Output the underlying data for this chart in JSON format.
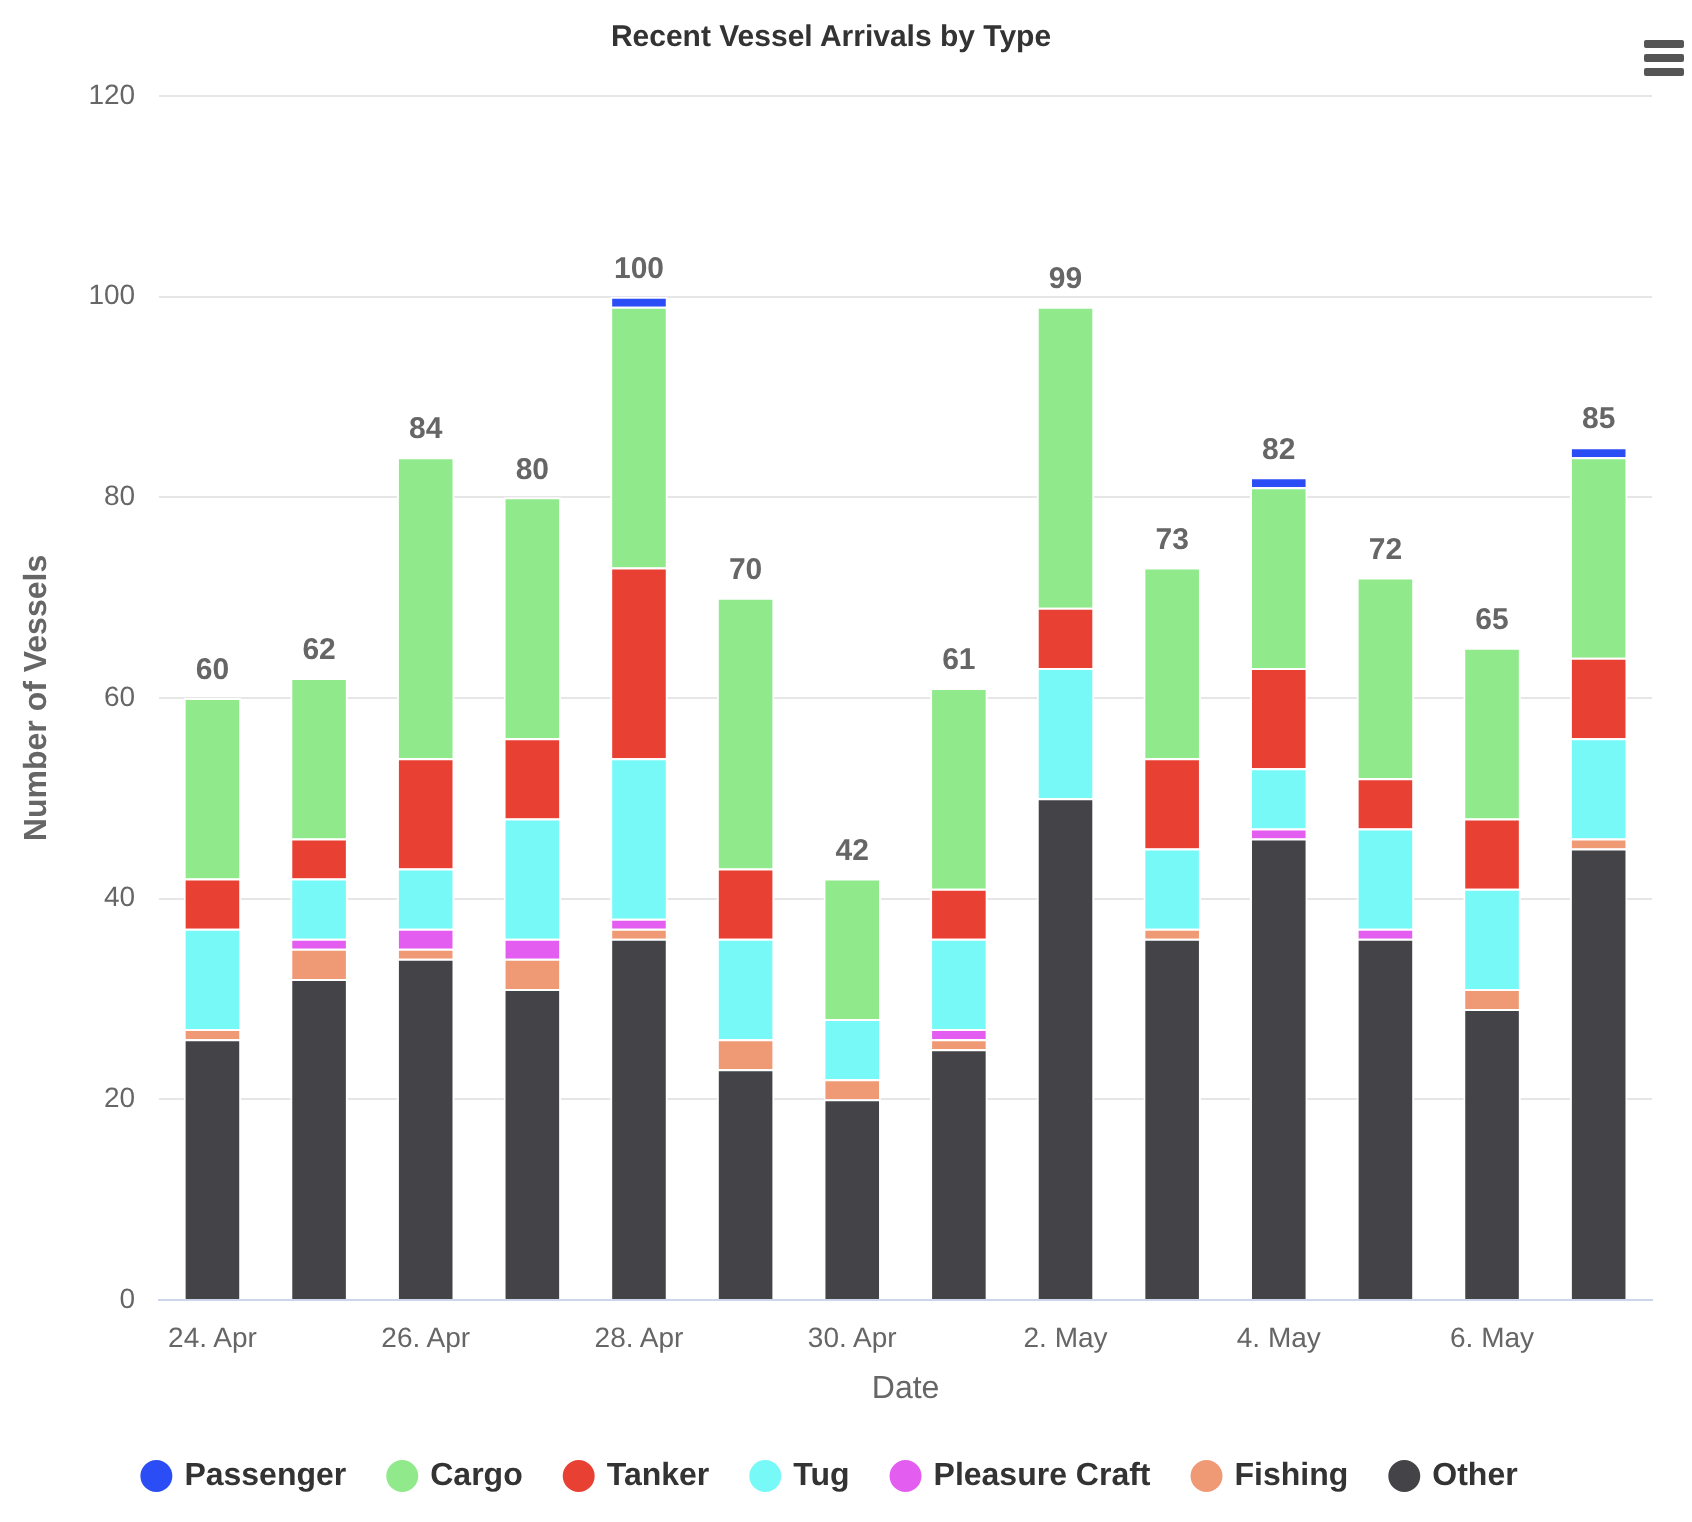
{
  "chart_data": {
    "type": "bar",
    "title": "Recent Vessel Arrivals by Type",
    "xlabel": "Date",
    "ylabel": "Number of Vessels",
    "categories": [
      "24. Apr",
      null,
      "26. Apr",
      null,
      "28. Apr",
      null,
      "30. Apr",
      null,
      "2. May",
      null,
      "4. May",
      null,
      "6. May",
      null
    ],
    "stacked": true,
    "ylim": [
      0,
      120
    ],
    "yticks": [
      0,
      20,
      40,
      60,
      80,
      100,
      120
    ],
    "grid": "y",
    "legend": "bottom",
    "marker": "circle",
    "series": [
      {
        "name": "Other",
        "color": "#434348",
        "values": [
          26,
          32,
          34,
          31,
          36,
          23,
          20,
          25,
          50,
          36,
          46,
          36,
          29,
          45
        ]
      },
      {
        "name": "Fishing",
        "color": "#f09a75",
        "values": [
          1,
          3,
          1,
          3,
          1,
          3,
          2,
          1,
          0,
          1,
          0,
          0,
          2,
          1
        ]
      },
      {
        "name": "Pleasure Craft",
        "color": "#e35ef0",
        "values": [
          0,
          1,
          2,
          2,
          1,
          0,
          0,
          1,
          0,
          0,
          1,
          1,
          0,
          0
        ]
      },
      {
        "name": "Tug",
        "color": "#77f9f8",
        "values": [
          10,
          6,
          6,
          12,
          16,
          10,
          6,
          9,
          13,
          8,
          6,
          10,
          10,
          10
        ]
      },
      {
        "name": "Tanker",
        "color": "#e84033",
        "values": [
          5,
          4,
          11,
          8,
          19,
          7,
          0,
          5,
          6,
          9,
          10,
          5,
          7,
          8
        ]
      },
      {
        "name": "Cargo",
        "color": "#90ea8c",
        "values": [
          18,
          16,
          30,
          24,
          26,
          27,
          14,
          20,
          30,
          19,
          18,
          20,
          17,
          20
        ]
      },
      {
        "name": "Passenger",
        "color": "#2b4df5",
        "values": [
          0,
          0,
          0,
          0,
          1,
          0,
          0,
          0,
          0,
          0,
          1,
          0,
          0,
          1
        ]
      }
    ],
    "totals": [
      "60",
      "62",
      "84",
      "80",
      "100",
      "70",
      "42",
      "61",
      "99",
      "73",
      "82",
      "72",
      "65",
      "85"
    ]
  }
}
